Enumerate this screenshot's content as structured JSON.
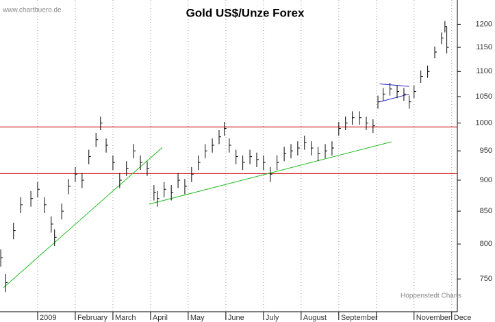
{
  "chart_data": {
    "type": "ohlc",
    "title": "Gold US$/Unze Forex",
    "source": "www.chartbuero.de",
    "credit": "Höppenstedt Charts",
    "log_scale": true,
    "ylim": [
      706,
      1255
    ],
    "yticks": [
      750,
      800,
      850,
      900,
      950,
      1000,
      1050,
      1100,
      1150,
      1200
    ],
    "xlim": [
      -1,
      11.15
    ],
    "xticks": [
      {
        "value": 0,
        "label": "2009"
      },
      {
        "value": 1,
        "label": "February"
      },
      {
        "value": 2,
        "label": "March"
      },
      {
        "value": 3,
        "label": "April"
      },
      {
        "value": 4,
        "label": "May"
      },
      {
        "value": 5,
        "label": "June"
      },
      {
        "value": 6,
        "label": "July"
      },
      {
        "value": 7,
        "label": "August"
      },
      {
        "value": 8,
        "label": "September"
      },
      {
        "value": 9,
        "label": null
      },
      {
        "value": 10,
        "label": "November"
      },
      {
        "value": 11,
        "label": "Dece"
      }
    ],
    "grid": true,
    "color": "#000000",
    "x": [
      -0.98,
      -0.85,
      -0.64,
      -0.45,
      -0.18,
      0,
      0.18,
      0.36,
      0.45,
      0.64,
      0.82,
      1.0,
      1.18,
      1.36,
      1.55,
      1.67,
      1.82,
      2.0,
      2.18,
      2.36,
      2.55,
      2.73,
      2.91,
      3.09,
      3.18,
      3.36,
      3.55,
      3.73,
      3.91,
      4.09,
      4.27,
      4.45,
      4.64,
      4.82,
      4.96,
      5.09,
      5.27,
      5.45,
      5.64,
      5.82,
      6.0,
      6.18,
      6.36,
      6.55,
      6.73,
      6.91,
      7.09,
      7.27,
      7.45,
      7.64,
      7.82,
      8.0,
      8.18,
      8.36,
      8.55,
      8.73,
      8.91,
      9.04,
      9.18,
      9.36,
      9.55,
      9.73,
      9.87,
      10.0,
      10.18,
      10.36,
      10.55,
      10.73,
      10.82,
      10.87
    ],
    "high": [
      792,
      757,
      832,
      872,
      882,
      897,
      872,
      842,
      822,
      862,
      902,
      922,
      912,
      952,
      982,
      1012,
      972,
      942,
      912,
      932,
      962,
      942,
      932,
      892,
      882,
      897,
      892,
      912,
      902,
      922,
      942,
      962,
      972,
      987,
      1002,
      972,
      952,
      942,
      952,
      947,
      942,
      922,
      942,
      957,
      962,
      967,
      977,
      967,
      957,
      962,
      967,
      1002,
      1012,
      1022,
      1022,
      1012,
      1007,
      1052,
      1067,
      1077,
      1072,
      1067,
      1052,
      1072,
      1102,
      1112,
      1152,
      1182,
      1207,
      1195
    ],
    "low": [
      767,
      732,
      807,
      847,
      857,
      872,
      847,
      817,
      797,
      837,
      877,
      897,
      887,
      927,
      957,
      987,
      947,
      917,
      887,
      907,
      937,
      917,
      907,
      867,
      857,
      872,
      867,
      887,
      877,
      897,
      917,
      937,
      947,
      962,
      977,
      947,
      927,
      917,
      927,
      922,
      917,
      897,
      917,
      932,
      937,
      942,
      952,
      942,
      932,
      937,
      942,
      977,
      987,
      997,
      997,
      987,
      982,
      1027,
      1042,
      1052,
      1047,
      1042,
      1027,
      1047,
      1077,
      1087,
      1127,
      1157,
      1182,
      1137
    ],
    "close": [
      780,
      745,
      820,
      860,
      870,
      885,
      860,
      830,
      810,
      850,
      890,
      910,
      900,
      940,
      970,
      1000,
      960,
      930,
      900,
      920,
      950,
      930,
      920,
      880,
      870,
      885,
      880,
      900,
      890,
      910,
      930,
      950,
      960,
      975,
      990,
      960,
      940,
      930,
      940,
      935,
      930,
      910,
      930,
      945,
      950,
      955,
      965,
      955,
      945,
      950,
      955,
      990,
      1000,
      1010,
      1010,
      1000,
      995,
      1040,
      1055,
      1065,
      1060,
      1055,
      1040,
      1060,
      1090,
      1100,
      1140,
      1170,
      1195,
      1150
    ],
    "hlines": [
      {
        "value": 993,
        "color": "#cc0000"
      },
      {
        "value": 911,
        "color": "#cc0000"
      }
    ],
    "trendlines": [
      {
        "x": [
          -0.91,
          3.31
        ],
        "y": [
          738,
          956
        ],
        "color": "#22bb22"
      },
      {
        "x": [
          2.96,
          9.4
        ],
        "y": [
          861,
          966
        ],
        "color": "#22bb22"
      },
      {
        "x": [
          9.09,
          9.87
        ],
        "y": [
          1075,
          1070
        ],
        "color": "#2222cc"
      },
      {
        "x": [
          9.09,
          9.87
        ],
        "y": [
          1040,
          1055
        ],
        "color": "#2222cc"
      }
    ]
  }
}
